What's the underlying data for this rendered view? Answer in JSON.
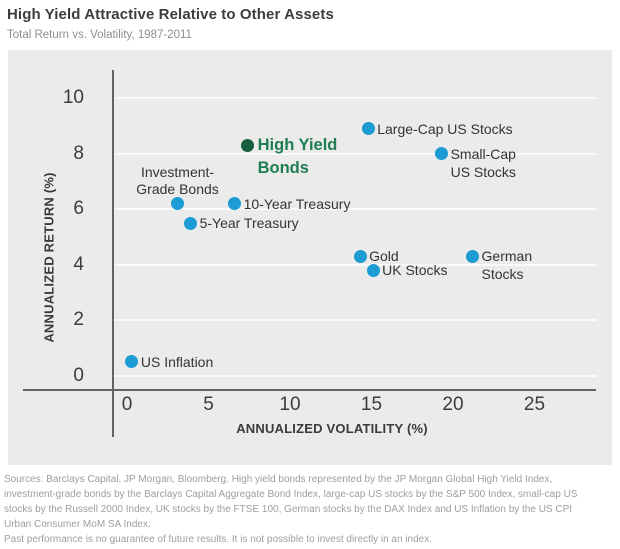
{
  "header": {
    "title": "High Yield Attractive Relative to Other Assets",
    "subtitle": "Total Return vs. Volatility, 1987-2011"
  },
  "chart_data": {
    "type": "scatter",
    "title": "High Yield Attractive Relative to Other Assets",
    "subtitle": "Total Return vs. Volatility, 1987-2011",
    "xlabel": "ANNUALIZED VOLATILITY (%)",
    "ylabel": "ANNUALIZED RETURN (%)",
    "xlim": [
      0,
      28
    ],
    "ylim": [
      0,
      10.5
    ],
    "xticks": [
      0,
      5,
      10,
      15,
      20,
      25
    ],
    "yticks": [
      0,
      2,
      4,
      6,
      8,
      10
    ],
    "grid": "horizontal",
    "legend": "none",
    "points": [
      {
        "name": "High Yield Bonds",
        "x": 7.4,
        "y": 8.3,
        "label_lines": [
          "High Yield",
          "Bonds"
        ],
        "placement": "right",
        "highlight": true
      },
      {
        "name": "Large-Cap US Stocks",
        "x": 14.8,
        "y": 8.9,
        "label_lines": [
          "Large-Cap US Stocks"
        ],
        "placement": "right",
        "highlight": false
      },
      {
        "name": "Small-Cap US Stocks",
        "x": 19.3,
        "y": 8.0,
        "label_lines": [
          "Small-Cap",
          "US Stocks"
        ],
        "placement": "right",
        "highlight": false
      },
      {
        "name": "Investment-Grade Bonds",
        "x": 3.1,
        "y": 6.2,
        "label_lines": [
          "Investment-",
          "Grade Bonds"
        ],
        "placement": "above",
        "highlight": false
      },
      {
        "name": "10-Year Treasury",
        "x": 6.6,
        "y": 6.2,
        "label_lines": [
          "10-Year Treasury"
        ],
        "placement": "right",
        "highlight": false
      },
      {
        "name": "5-Year Treasury",
        "x": 3.9,
        "y": 5.5,
        "label_lines": [
          "5-Year Treasury"
        ],
        "placement": "right",
        "highlight": false
      },
      {
        "name": "Gold",
        "x": 14.3,
        "y": 4.3,
        "label_lines": [
          "Gold"
        ],
        "placement": "right",
        "highlight": false
      },
      {
        "name": "UK Stocks",
        "x": 15.1,
        "y": 3.8,
        "label_lines": [
          "UK Stocks"
        ],
        "placement": "right",
        "highlight": false
      },
      {
        "name": "German Stocks",
        "x": 21.2,
        "y": 4.3,
        "label_lines": [
          "German",
          "Stocks"
        ],
        "placement": "right",
        "highlight": false
      },
      {
        "name": "US Inflation",
        "x": 0.3,
        "y": 0.5,
        "label_lines": [
          "US Inflation"
        ],
        "placement": "right",
        "highlight": false
      }
    ]
  },
  "colors": {
    "dot_blue": "#1d9bd5",
    "dot_green": "#175e3e",
    "highlight_label_green": "#1f7e51",
    "panel_background": "#ebebeb",
    "axis_line": "#636363",
    "gridline": "#f9f9f9",
    "title_text": "#3d3d3d",
    "subtitle_text": "#8e8e8e",
    "tick_text": "#3c3c3c",
    "point_label_text": "#343434",
    "footer_text": "#9e9e9e"
  },
  "footer": {
    "lines": [
      "Sources: Barclays Capital, JP Morgan, Bloomberg. High yield bonds represented by the JP Morgan Global High Yield Index,",
      "investment-grade bonds by the Barclays Capital Aggregate Bond Index, large-cap US stocks by the S&P 500 Index, small-cap US",
      "stocks by the Russell 2000 Index, UK stocks by the FTSE 100, German stocks by the DAX Index and US Inflation by the US CPI",
      "Urban Consumer MoM SA Index.",
      "Past performance is no guarantee of future results. It is not possible to invest directly in an index."
    ]
  }
}
